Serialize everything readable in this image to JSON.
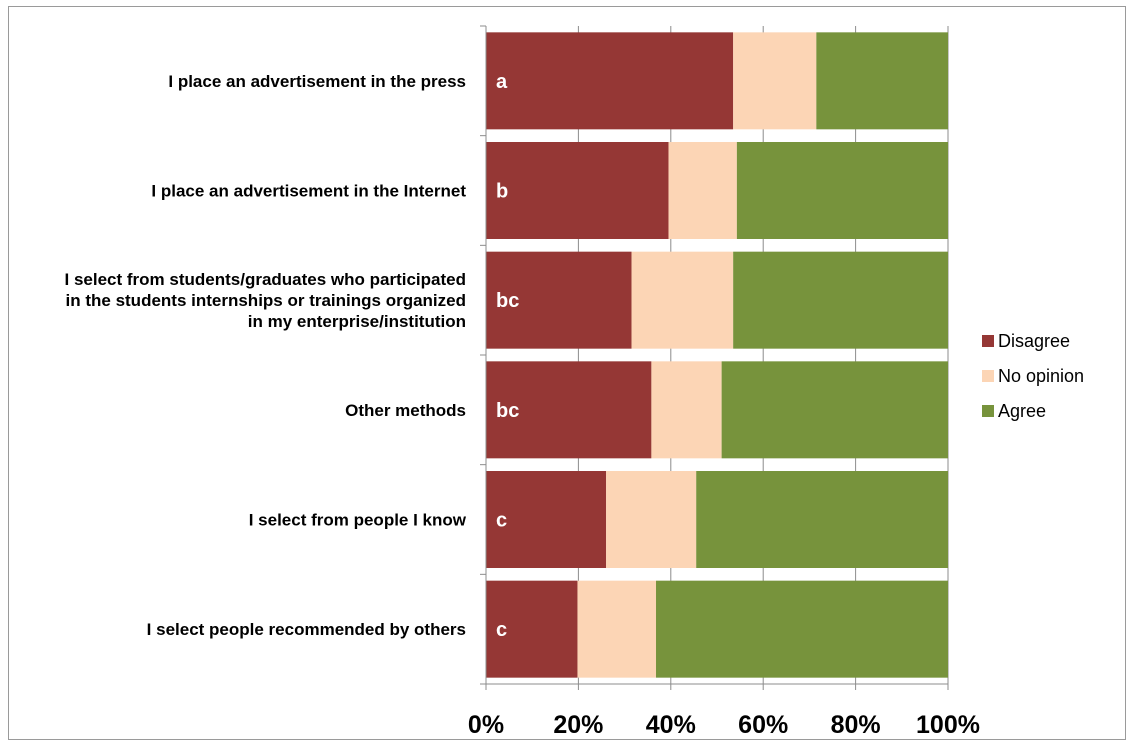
{
  "chart_data": {
    "type": "bar",
    "orientation": "horizontal",
    "stacked": "percent",
    "categories": [
      [
        "I place an advertisement in the press"
      ],
      [
        "I place an advertisement in the Internet"
      ],
      [
        "I select from students/graduates who participated",
        "in the students internships or trainings organized",
        "in my enterprise/institution"
      ],
      [
        "Other methods"
      ],
      [
        "I select from people I know"
      ],
      [
        "I select people recommended by others"
      ]
    ],
    "group_letters": [
      "a",
      "b",
      "bc",
      "bc",
      "c",
      "c"
    ],
    "series": [
      {
        "name": "Disagree",
        "color": "#953735",
        "values": [
          53.5,
          39.5,
          31.5,
          35.8,
          26.0,
          19.8
        ]
      },
      {
        "name": "No opinion",
        "color": "#FCD5B5",
        "values": [
          18.0,
          14.8,
          22.0,
          15.2,
          19.5,
          17.0
        ]
      },
      {
        "name": "Agree",
        "color": "#77933C",
        "values": [
          28.5,
          45.7,
          46.5,
          49.0,
          54.5,
          63.2
        ]
      }
    ],
    "xlim": [
      0,
      100
    ],
    "xticks": [
      "0%",
      "20%",
      "40%",
      "60%",
      "80%",
      "100%"
    ],
    "grid": true,
    "legend_position": "right",
    "title": "",
    "xlabel": "",
    "ylabel": ""
  }
}
